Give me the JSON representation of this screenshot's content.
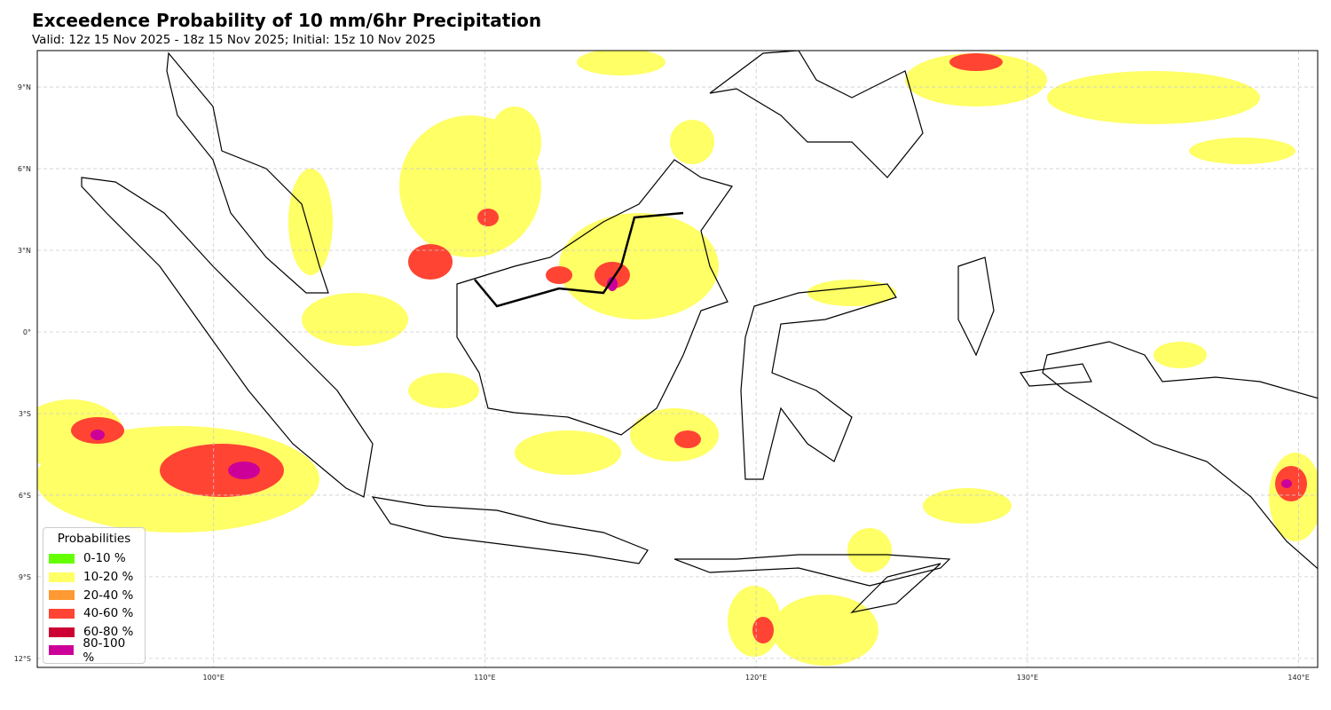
{
  "title": "Exceedence Probability of 10 mm/6hr Precipitation",
  "subtitle": "Valid: 12z 15 Nov 2025 - 18z 15 Nov 2025; Initial: 15z 10 Nov 2025",
  "map": {
    "extent_lon": [
      93.5,
      140.7
    ],
    "extent_lat": [
      -12.33,
      10.34
    ],
    "lon_ticks": [
      {
        "value": 100,
        "label": "100°E"
      },
      {
        "value": 110,
        "label": "110°E"
      },
      {
        "value": 120,
        "label": "120°E"
      },
      {
        "value": 130,
        "label": "130°E"
      },
      {
        "value": 140,
        "label": "140°E"
      }
    ],
    "lat_ticks": [
      {
        "value": 9,
        "label": "9°N"
      },
      {
        "value": 6,
        "label": "6°N"
      },
      {
        "value": 3,
        "label": "3°N"
      },
      {
        "value": 0,
        "label": "0°"
      },
      {
        "value": -3,
        "label": "3°S"
      },
      {
        "value": -6,
        "label": "6°S"
      },
      {
        "value": -9,
        "label": "9°S"
      },
      {
        "value": -12,
        "label": "12°S"
      }
    ]
  },
  "legend": {
    "title": "Probabilities",
    "items": [
      {
        "label": "0-10 %",
        "color": "#66ff00"
      },
      {
        "label": "10-20 %",
        "color": "#ffff66"
      },
      {
        "label": "20-40 %",
        "color": "#ff9933"
      },
      {
        "label": "40-60 %",
        "color": "#ff4433"
      },
      {
        "label": "60-80 %",
        "color": "#cc0033"
      },
      {
        "label": "80-100 %",
        "color": "#cc0099"
      }
    ]
  }
}
